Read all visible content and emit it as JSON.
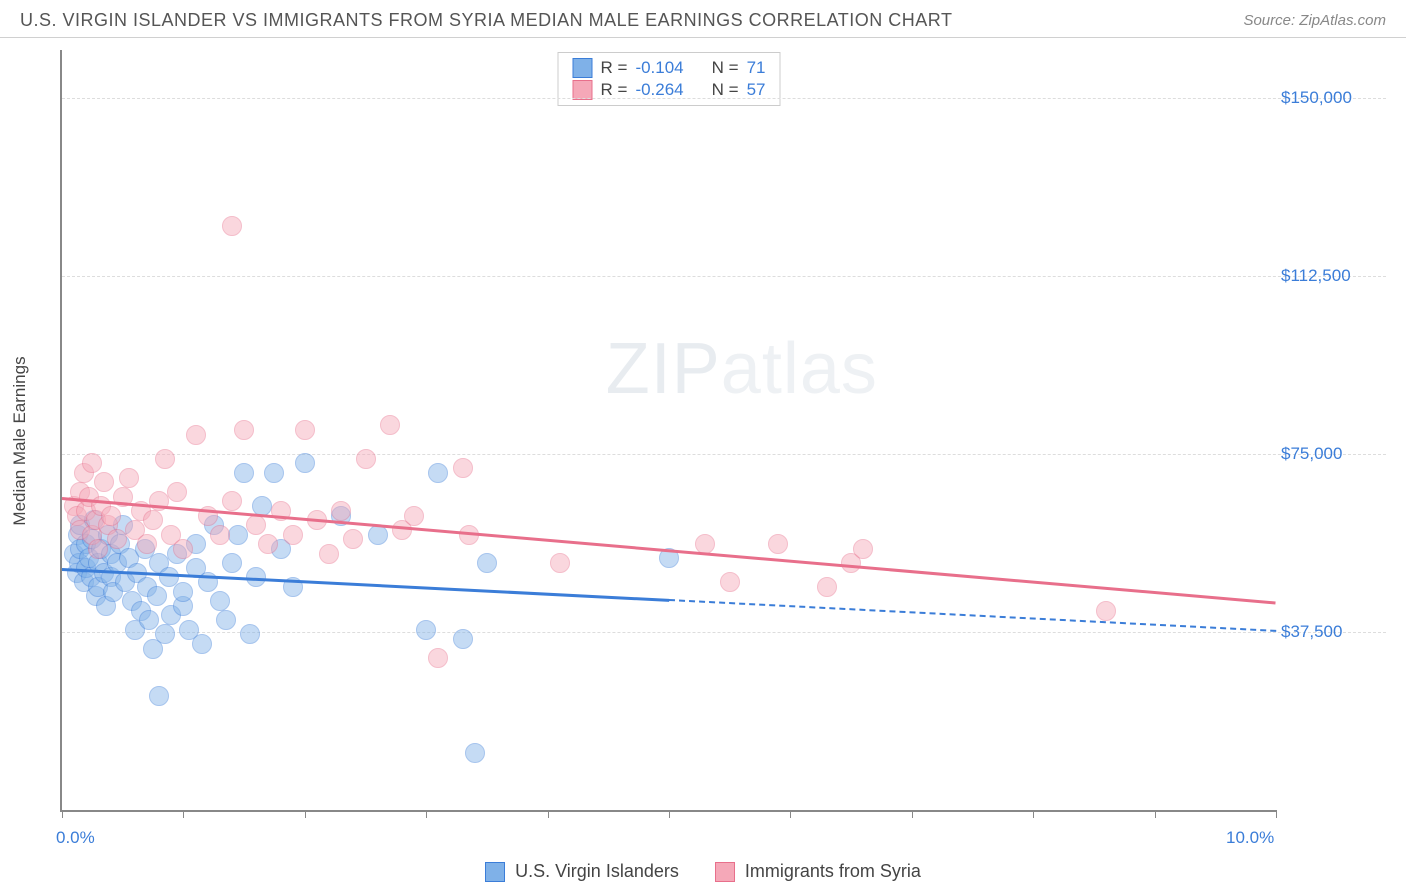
{
  "header": {
    "title": "U.S. VIRGIN ISLANDER VS IMMIGRANTS FROM SYRIA MEDIAN MALE EARNINGS CORRELATION CHART",
    "source": "Source: ZipAtlas.com"
  },
  "chart": {
    "type": "scatter",
    "ylabel": "Median Male Earnings",
    "watermark": "ZIPatlas",
    "background_color": "#ffffff",
    "grid_color": "#dddddd",
    "axis_color": "#888888",
    "xlim": [
      0,
      10
    ],
    "ylim": [
      0,
      160000
    ],
    "x_ticks": [
      0,
      1,
      2,
      3,
      4,
      5,
      6,
      7,
      8,
      9,
      10
    ],
    "x_tick_labels_shown": {
      "0": "0.0%",
      "10": "10.0%"
    },
    "y_ticks": [
      37500,
      75000,
      112500,
      150000
    ],
    "y_tick_labels": [
      "$37,500",
      "$75,000",
      "$112,500",
      "$150,000"
    ],
    "marker_radius": 10,
    "marker_opacity": 0.45,
    "trend_line_width": 2.5,
    "series": [
      {
        "name": "U.S. Virgin Islanders",
        "color_fill": "#7fb1e8",
        "color_stroke": "#3b7dd8",
        "r_label": "R =",
        "r_value": "-0.104",
        "n_label": "N =",
        "n_value": "71",
        "trend": {
          "x1": 0,
          "y1": 51000,
          "x2": 5.0,
          "y2": 44500,
          "x2_dash": 10.0,
          "y2_dash": 38000
        },
        "points": [
          [
            0.1,
            54000
          ],
          [
            0.12,
            50000
          ],
          [
            0.13,
            58000
          ],
          [
            0.14,
            52000
          ],
          [
            0.15,
            55000
          ],
          [
            0.15,
            60000
          ],
          [
            0.18,
            48000
          ],
          [
            0.2,
            56000
          ],
          [
            0.2,
            51000
          ],
          [
            0.22,
            53000
          ],
          [
            0.24,
            49000
          ],
          [
            0.25,
            57000
          ],
          [
            0.26,
            61000
          ],
          [
            0.28,
            45000
          ],
          [
            0.3,
            52000
          ],
          [
            0.3,
            47000
          ],
          [
            0.32,
            55000
          ],
          [
            0.35,
            50000
          ],
          [
            0.36,
            43000
          ],
          [
            0.38,
            58000
          ],
          [
            0.4,
            54000
          ],
          [
            0.4,
            49000
          ],
          [
            0.42,
            46000
          ],
          [
            0.45,
            52000
          ],
          [
            0.48,
            56000
          ],
          [
            0.5,
            60000
          ],
          [
            0.52,
            48000
          ],
          [
            0.55,
            53000
          ],
          [
            0.58,
            44000
          ],
          [
            0.6,
            38000
          ],
          [
            0.62,
            50000
          ],
          [
            0.65,
            42000
          ],
          [
            0.68,
            55000
          ],
          [
            0.7,
            47000
          ],
          [
            0.72,
            40000
          ],
          [
            0.75,
            34000
          ],
          [
            0.78,
            45000
          ],
          [
            0.8,
            52000
          ],
          [
            0.8,
            24000
          ],
          [
            0.85,
            37000
          ],
          [
            0.88,
            49000
          ],
          [
            0.9,
            41000
          ],
          [
            0.95,
            54000
          ],
          [
            1.0,
            43000
          ],
          [
            1.0,
            46000
          ],
          [
            1.05,
            38000
          ],
          [
            1.1,
            51000
          ],
          [
            1.1,
            56000
          ],
          [
            1.15,
            35000
          ],
          [
            1.2,
            48000
          ],
          [
            1.25,
            60000
          ],
          [
            1.3,
            44000
          ],
          [
            1.35,
            40000
          ],
          [
            1.4,
            52000
          ],
          [
            1.45,
            58000
          ],
          [
            1.5,
            71000
          ],
          [
            1.55,
            37000
          ],
          [
            1.6,
            49000
          ],
          [
            1.65,
            64000
          ],
          [
            1.75,
            71000
          ],
          [
            1.8,
            55000
          ],
          [
            1.9,
            47000
          ],
          [
            2.0,
            73000
          ],
          [
            2.3,
            62000
          ],
          [
            2.6,
            58000
          ],
          [
            3.0,
            38000
          ],
          [
            3.1,
            71000
          ],
          [
            3.3,
            36000
          ],
          [
            3.4,
            12000
          ],
          [
            3.5,
            52000
          ],
          [
            5.0,
            53000
          ]
        ]
      },
      {
        "name": "Immigrants from Syria",
        "color_fill": "#f5a8b8",
        "color_stroke": "#e86f8b",
        "r_label": "R =",
        "r_value": "-0.264",
        "n_label": "N =",
        "n_value": "57",
        "trend": {
          "x1": 0,
          "y1": 66000,
          "x2": 10.0,
          "y2": 44000
        },
        "points": [
          [
            0.1,
            64000
          ],
          [
            0.12,
            62000
          ],
          [
            0.15,
            59000
          ],
          [
            0.15,
            67000
          ],
          [
            0.18,
            71000
          ],
          [
            0.2,
            63000
          ],
          [
            0.22,
            66000
          ],
          [
            0.25,
            58000
          ],
          [
            0.25,
            73000
          ],
          [
            0.28,
            61000
          ],
          [
            0.3,
            55000
          ],
          [
            0.32,
            64000
          ],
          [
            0.35,
            69000
          ],
          [
            0.38,
            60000
          ],
          [
            0.4,
            62000
          ],
          [
            0.45,
            57000
          ],
          [
            0.5,
            66000
          ],
          [
            0.55,
            70000
          ],
          [
            0.6,
            59000
          ],
          [
            0.65,
            63000
          ],
          [
            0.7,
            56000
          ],
          [
            0.75,
            61000
          ],
          [
            0.8,
            65000
          ],
          [
            0.85,
            74000
          ],
          [
            0.9,
            58000
          ],
          [
            0.95,
            67000
          ],
          [
            1.0,
            55000
          ],
          [
            1.1,
            79000
          ],
          [
            1.2,
            62000
          ],
          [
            1.3,
            58000
          ],
          [
            1.4,
            65000
          ],
          [
            1.4,
            123000
          ],
          [
            1.5,
            80000
          ],
          [
            1.6,
            60000
          ],
          [
            1.7,
            56000
          ],
          [
            1.8,
            63000
          ],
          [
            1.9,
            58000
          ],
          [
            2.0,
            80000
          ],
          [
            2.1,
            61000
          ],
          [
            2.2,
            54000
          ],
          [
            2.3,
            63000
          ],
          [
            2.4,
            57000
          ],
          [
            2.5,
            74000
          ],
          [
            2.7,
            81000
          ],
          [
            2.8,
            59000
          ],
          [
            2.9,
            62000
          ],
          [
            3.1,
            32000
          ],
          [
            3.3,
            72000
          ],
          [
            3.35,
            58000
          ],
          [
            4.1,
            52000
          ],
          [
            5.3,
            56000
          ],
          [
            5.5,
            48000
          ],
          [
            5.9,
            56000
          ],
          [
            6.3,
            47000
          ],
          [
            6.5,
            52000
          ],
          [
            6.6,
            55000
          ],
          [
            8.6,
            42000
          ]
        ]
      }
    ],
    "stats_box": {
      "border_color": "#cccccc",
      "value_color": "#3b7dd8",
      "fontsize": 17
    },
    "legend_bottom": {
      "fontsize": 18,
      "text_color": "#444444"
    },
    "ylabel_fontsize": 17,
    "title_fontsize": 18,
    "title_color": "#555555",
    "axis_tick_label_color": "#3b7dd8",
    "axis_tick_label_fontsize": 17
  }
}
